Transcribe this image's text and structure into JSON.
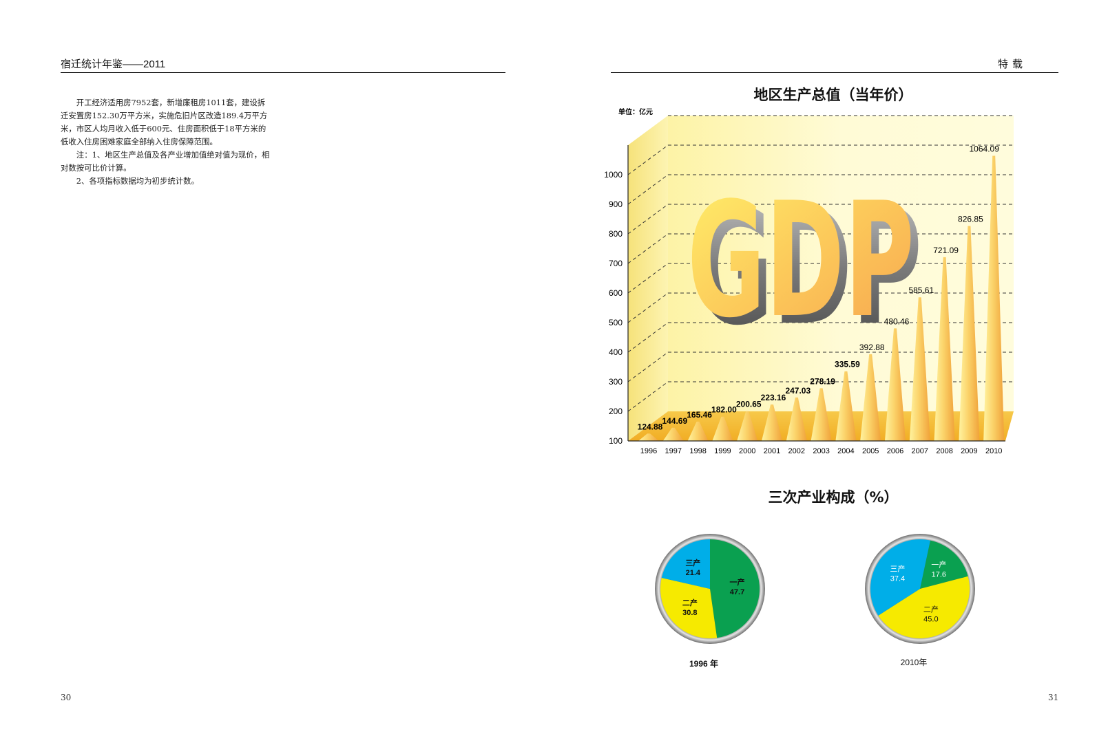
{
  "header": {
    "left_title": "宿迁统计年鉴——2011",
    "right_title": "特载"
  },
  "left_text": {
    "para1": "开工经济适用房7952套，新增廉租房1011套，建设拆迁安置房152.30万平方米，实施危旧片区改造189.4万平方米，市区人均月收入低于600元、住房面积低于18平方米的低收入住房困难家庭全部纳入住房保障范围。",
    "note1": "注：1、地区生产总值及各产业增加值绝对值为现价，相对数按可比价计算。",
    "note2": "2、各项指标数据均为初步统计数。"
  },
  "page_numbers": {
    "left": "30",
    "right": "31"
  },
  "chart_data": [
    {
      "type": "bar",
      "title": "地区生产总值（当年价）",
      "unit_label": "单位：亿元",
      "watermark": "GDP",
      "categories": [
        "1996",
        "1997",
        "1998",
        "1999",
        "2000",
        "2001",
        "2002",
        "2003",
        "2004",
        "2005",
        "2006",
        "2007",
        "2008",
        "2009",
        "2010"
      ],
      "values": [
        124.88,
        144.69,
        165.46,
        182.0,
        200.65,
        223.16,
        247.03,
        278.19,
        335.59,
        392.88,
        480.46,
        585.61,
        721.09,
        826.85,
        1064.09
      ],
      "value_labels": [
        "124.88",
        "144.69",
        "165.46",
        "182.00",
        "200.65",
        "223.16",
        "247.03",
        "278.19",
        "335.59",
        "392.88",
        "480.46",
        "585.61",
        "721.09",
        "826.85",
        "1064.09"
      ],
      "yticks": [
        "100",
        "200",
        "300",
        "400",
        "500",
        "600",
        "700",
        "800",
        "900",
        "1000"
      ],
      "ylim": [
        100,
        1100
      ],
      "grid": true
    },
    {
      "type": "pie",
      "title": "三次产业构成（%）",
      "charts": [
        {
          "caption": "1996 年",
          "slices": [
            {
              "name": "一产",
              "value": 47.7,
              "label": "47.7",
              "color": "#0aa050"
            },
            {
              "name": "二产",
              "value": 30.8,
              "label": "30.8",
              "color": "#f6ea00"
            },
            {
              "name": "三产",
              "value": 21.4,
              "label": "21.4",
              "color": "#00aee8"
            }
          ]
        },
        {
          "caption": "2010年",
          "slices": [
            {
              "name": "一产",
              "value": 17.6,
              "label": "17.6",
              "color": "#0aa050"
            },
            {
              "name": "二产",
              "value": 45.0,
              "label": "45.0",
              "color": "#f6ea00"
            },
            {
              "name": "三产",
              "value": 37.4,
              "label": "37.4",
              "color": "#00aee8"
            }
          ]
        }
      ]
    }
  ]
}
